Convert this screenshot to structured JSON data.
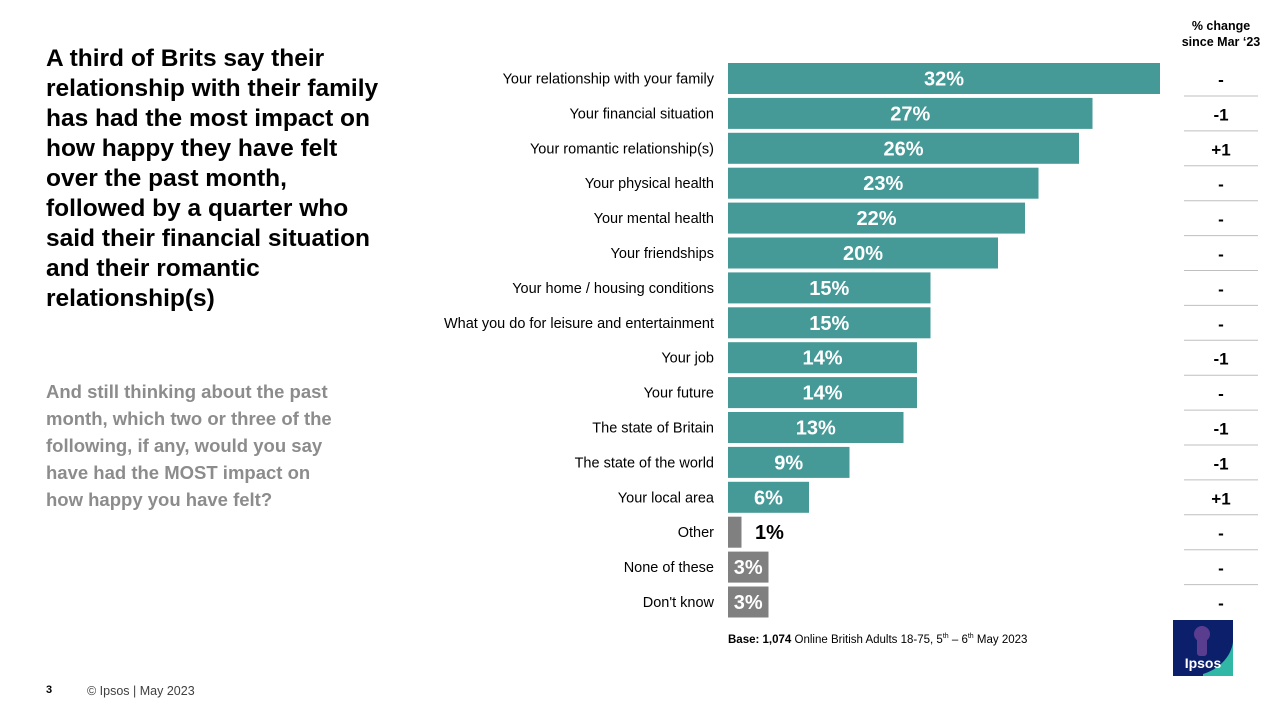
{
  "headline": "A third of Brits say their relationship with their family has had the most impact on how happy they have felt over the past month, followed by a quarter who said their financial situation and their romantic relationship(s)",
  "question": "And still thinking about the past month, which two or three of the following, if any, would you say have had the MOST impact on how happy you have felt?",
  "change_header": {
    "line1": "% change",
    "line2": "since Mar ‘23"
  },
  "base_note": {
    "label": "Base:",
    "count": "1,074",
    "text": "Online British Adults 18-75, 5",
    "sup1": "th",
    "dash": " – 6",
    "sup2": "th",
    "end": " May 2023"
  },
  "footer": {
    "page_number": "3",
    "copyright": "© Ipsos | May 2023"
  },
  "logo": {
    "text": "Ipsos"
  },
  "colors": {
    "bar": "#459a98",
    "bar_other": "#808080",
    "divider": "#bfbfbf"
  },
  "chart_data": {
    "type": "bar",
    "orientation": "horizontal",
    "categories": [
      "Your relationship with your family",
      "Your financial situation",
      "Your romantic relationship(s)",
      "Your physical health",
      "Your mental health",
      "Your friendships",
      "Your home / housing conditions",
      "What you do for leisure and entertainment",
      "Your job",
      "Your future",
      "The state of Britain",
      "The state of the world",
      "Your local area",
      "Other",
      "None of these",
      "Don't know"
    ],
    "values": [
      32,
      27,
      26,
      23,
      22,
      20,
      15,
      15,
      14,
      14,
      13,
      9,
      6,
      1,
      3,
      3
    ],
    "value_labels": [
      "32%",
      "27%",
      "26%",
      "23%",
      "22%",
      "20%",
      "15%",
      "15%",
      "14%",
      "14%",
      "13%",
      "9%",
      "6%",
      "1%",
      "3%",
      "3%"
    ],
    "change_since_mar_23": [
      "-",
      "-1",
      "+1",
      "-",
      "-",
      "-",
      "-",
      "-",
      "-1",
      "-",
      "-1",
      "-1",
      "+1",
      "-",
      "-",
      "-"
    ],
    "grey_bar_categories": [
      "Other",
      "None of these",
      "Don't know"
    ],
    "xlim": [
      0,
      32
    ],
    "grid": false,
    "legend": "none"
  }
}
